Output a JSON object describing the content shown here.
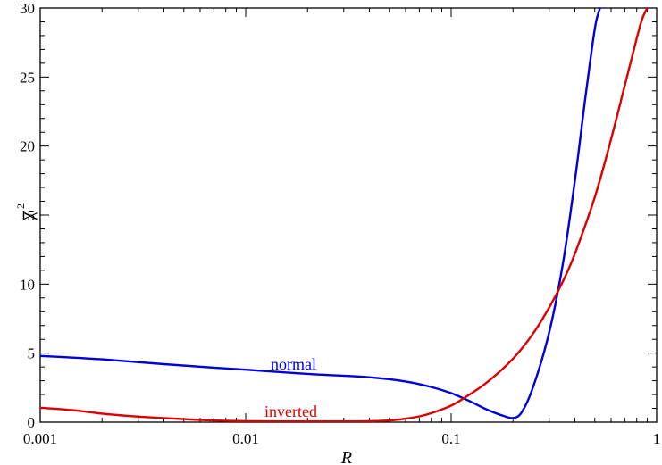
{
  "chart_data": {
    "type": "line",
    "xscale": "log",
    "xlim": [
      0.001,
      1
    ],
    "ylim": [
      0,
      30
    ],
    "grid": false,
    "xlabel": "R",
    "ylabel": "χ",
    "ylabel_superscript": "2",
    "xticks": [
      {
        "value": 0.001,
        "label": "0.001"
      },
      {
        "value": 0.01,
        "label": "0.01"
      },
      {
        "value": 0.1,
        "label": "0.1"
      },
      {
        "value": 1,
        "label": "1"
      }
    ],
    "yticks": [
      {
        "value": 0,
        "label": "0"
      },
      {
        "value": 5,
        "label": "5"
      },
      {
        "value": 10,
        "label": "10"
      },
      {
        "value": 15,
        "label": "15"
      },
      {
        "value": 20,
        "label": "20"
      },
      {
        "value": 25,
        "label": "25"
      },
      {
        "value": 30,
        "label": "30"
      }
    ],
    "series": [
      {
        "name": "normal",
        "color": "#0000dd",
        "x": [
          0.001,
          0.002,
          0.004,
          0.007,
          0.01,
          0.02,
          0.04,
          0.06,
          0.08,
          0.1,
          0.12,
          0.15,
          0.18,
          0.2,
          0.22,
          0.25,
          0.3,
          0.35,
          0.4,
          0.45,
          0.5,
          0.53
        ],
        "y": [
          4.8,
          4.55,
          4.2,
          3.95,
          3.8,
          3.5,
          3.25,
          2.95,
          2.55,
          2.1,
          1.6,
          0.9,
          0.45,
          0.3,
          0.7,
          2.5,
          6.5,
          11.5,
          17.5,
          23.5,
          28.5,
          30
        ]
      },
      {
        "name": "inverted",
        "color": "#dd0000",
        "x": [
          0.001,
          0.0015,
          0.002,
          0.003,
          0.005,
          0.007,
          0.01,
          0.015,
          0.02,
          0.03,
          0.04,
          0.05,
          0.06,
          0.07,
          0.08,
          0.1,
          0.12,
          0.15,
          0.2,
          0.25,
          0.3,
          0.35,
          0.4,
          0.5,
          0.6,
          0.7,
          0.8,
          0.85,
          0.9
        ],
        "y": [
          1.05,
          0.85,
          0.62,
          0.4,
          0.22,
          0.12,
          0.07,
          0.05,
          0.05,
          0.05,
          0.07,
          0.12,
          0.25,
          0.42,
          0.65,
          1.2,
          1.9,
          2.9,
          4.6,
          6.4,
          8.3,
          10.2,
          12.2,
          16.3,
          20.5,
          24.4,
          27.8,
          29.2,
          30
        ]
      }
    ]
  }
}
